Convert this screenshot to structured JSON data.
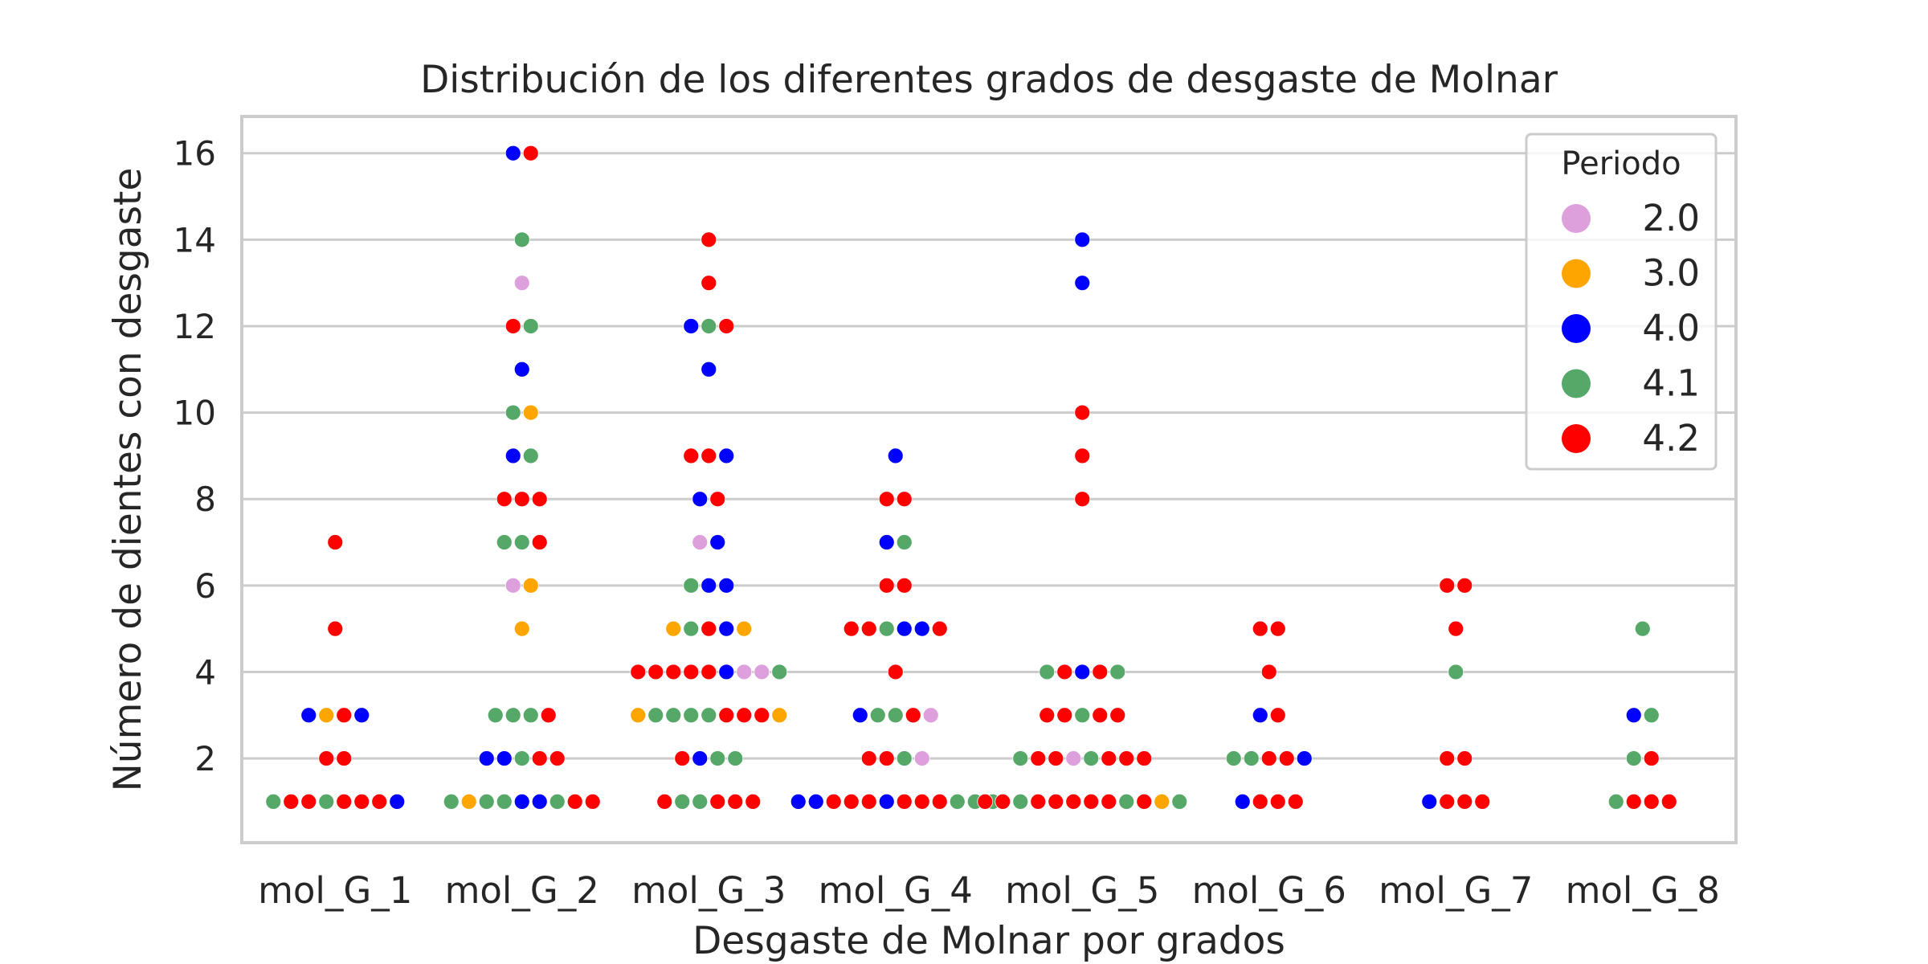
{
  "chart_data": {
    "type": "scatter",
    "subtype": "swarm",
    "title": "Distribución de los diferentes grados de desgaste de Molnar",
    "xlabel": "Desgaste de Molnar por grados",
    "ylabel": "Número de dientes con desgaste",
    "categories": [
      "mol_G_1",
      "mol_G_2",
      "mol_G_3",
      "mol_G_4",
      "mol_G_5",
      "mol_G_6",
      "mol_G_7",
      "mol_G_8"
    ],
    "ylim": [
      0.05,
      16.85
    ],
    "yticks": [
      2,
      4,
      6,
      8,
      10,
      12,
      14,
      16
    ],
    "grid": true,
    "legend": {
      "title": "Periodo",
      "placement": "top-right",
      "entries": [
        {
          "label": "2.0",
          "color": "#dda0dd"
        },
        {
          "label": "3.0",
          "color": "#ffa500"
        },
        {
          "label": "4.0",
          "color": "#0000ff"
        },
        {
          "label": "4.1",
          "color": "#55a868"
        },
        {
          "label": "4.2",
          "color": "#ff0000"
        }
      ]
    },
    "groups": [
      {
        "category": "mol_G_1",
        "points": [
          {
            "y": 1,
            "periodo": [
              "4.1",
              "4.2",
              "4.2",
              "4.1",
              "4.2",
              "4.2",
              "4.2",
              "4.0"
            ]
          },
          {
            "y": 2,
            "periodo": [
              "4.2",
              "4.2"
            ]
          },
          {
            "y": 3,
            "periodo": [
              "4.0",
              "3.0",
              "4.2",
              "4.0"
            ]
          },
          {
            "y": 5,
            "periodo": [
              "4.2"
            ]
          },
          {
            "y": 7,
            "periodo": [
              "4.2"
            ]
          }
        ]
      },
      {
        "category": "mol_G_2",
        "points": [
          {
            "y": 1,
            "periodo": [
              "4.1",
              "3.0",
              "4.1",
              "4.1",
              "4.0",
              "4.0",
              "4.1",
              "4.2",
              "4.2"
            ]
          },
          {
            "y": 2,
            "periodo": [
              "4.0",
              "4.0",
              "4.1",
              "4.2",
              "4.2"
            ]
          },
          {
            "y": 3,
            "periodo": [
              "4.1",
              "4.1",
              "4.1",
              "4.2"
            ]
          },
          {
            "y": 5,
            "periodo": [
              "3.0"
            ]
          },
          {
            "y": 6,
            "periodo": [
              "2.0",
              "3.0"
            ]
          },
          {
            "y": 7,
            "periodo": [
              "4.1",
              "4.1",
              "4.2"
            ]
          },
          {
            "y": 8,
            "periodo": [
              "4.2",
              "4.2",
              "4.2"
            ]
          },
          {
            "y": 9,
            "periodo": [
              "4.0",
              "4.1"
            ]
          },
          {
            "y": 10,
            "periodo": [
              "4.1",
              "3.0"
            ]
          },
          {
            "y": 11,
            "periodo": [
              "4.0"
            ]
          },
          {
            "y": 12,
            "periodo": [
              "4.2",
              "4.1"
            ]
          },
          {
            "y": 13,
            "periodo": [
              "2.0"
            ]
          },
          {
            "y": 14,
            "periodo": [
              "4.1"
            ]
          },
          {
            "y": 16,
            "periodo": [
              "4.0",
              "4.2"
            ]
          }
        ]
      },
      {
        "category": "mol_G_3",
        "points": [
          {
            "y": 1,
            "periodo": [
              "4.2",
              "4.1",
              "4.1",
              "4.2",
              "4.2",
              "4.2"
            ]
          },
          {
            "y": 2,
            "periodo": [
              "4.2",
              "4.0",
              "4.1",
              "4.1"
            ]
          },
          {
            "y": 3,
            "periodo": [
              "3.0",
              "4.1",
              "4.1",
              "4.1",
              "4.1",
              "4.2",
              "4.2",
              "4.2",
              "3.0"
            ]
          },
          {
            "y": 4,
            "periodo": [
              "4.2",
              "4.2",
              "4.2",
              "4.2",
              "4.2",
              "4.0",
              "2.0",
              "2.0",
              "4.1"
            ]
          },
          {
            "y": 5,
            "periodo": [
              "3.0",
              "4.1",
              "4.2",
              "4.0",
              "3.0"
            ]
          },
          {
            "y": 6,
            "periodo": [
              "4.1",
              "4.0",
              "4.0"
            ]
          },
          {
            "y": 7,
            "periodo": [
              "2.0",
              "4.0"
            ]
          },
          {
            "y": 8,
            "periodo": [
              "4.0",
              "4.2"
            ]
          },
          {
            "y": 9,
            "periodo": [
              "4.2",
              "4.2",
              "4.0"
            ]
          },
          {
            "y": 11,
            "periodo": [
              "4.0"
            ]
          },
          {
            "y": 12,
            "periodo": [
              "4.0",
              "4.1",
              "4.2"
            ]
          },
          {
            "y": 13,
            "periodo": [
              "4.2"
            ]
          },
          {
            "y": 14,
            "periodo": [
              "4.2"
            ]
          }
        ]
      },
      {
        "category": "mol_G_4",
        "points": [
          {
            "y": 1,
            "periodo": [
              "4.0",
              "4.0",
              "4.2",
              "4.2",
              "4.2",
              "4.0",
              "4.2",
              "4.2",
              "4.2",
              "4.1",
              "4.1",
              "4.1"
            ]
          },
          {
            "y": 2,
            "periodo": [
              "4.2",
              "4.2",
              "4.1",
              "2.0"
            ]
          },
          {
            "y": 3,
            "periodo": [
              "4.0",
              "4.1",
              "4.1",
              "4.2",
              "2.0"
            ]
          },
          {
            "y": 4,
            "periodo": [
              "4.2"
            ]
          },
          {
            "y": 5,
            "periodo": [
              "4.2",
              "4.2",
              "4.1",
              "4.0",
              "4.0",
              "4.2"
            ]
          },
          {
            "y": 6,
            "periodo": [
              "4.2",
              "4.2"
            ]
          },
          {
            "y": 7,
            "periodo": [
              "4.0",
              "4.1"
            ]
          },
          {
            "y": 8,
            "periodo": [
              "4.2",
              "4.2"
            ]
          },
          {
            "y": 9,
            "periodo": [
              "4.0"
            ]
          }
        ]
      },
      {
        "category": "mol_G_5",
        "points": [
          {
            "y": 1,
            "periodo": [
              "4.2",
              "4.2",
              "4.1",
              "4.2",
              "4.2",
              "4.2",
              "4.2",
              "4.2",
              "4.1",
              "4.2",
              "3.0",
              "4.1"
            ]
          },
          {
            "y": 2,
            "periodo": [
              "4.1",
              "4.2",
              "4.2",
              "2.0",
              "4.1",
              "4.2",
              "4.2",
              "4.2"
            ]
          },
          {
            "y": 3,
            "periodo": [
              "4.2",
              "4.2",
              "4.1",
              "4.2",
              "4.2"
            ]
          },
          {
            "y": 4,
            "periodo": [
              "4.1",
              "4.2",
              "4.0",
              "4.2",
              "4.1"
            ]
          },
          {
            "y": 8,
            "periodo": [
              "4.2"
            ]
          },
          {
            "y": 9,
            "periodo": [
              "4.2"
            ]
          },
          {
            "y": 10,
            "periodo": [
              "4.2"
            ]
          },
          {
            "y": 13,
            "periodo": [
              "4.0"
            ]
          },
          {
            "y": 14,
            "periodo": [
              "4.0"
            ]
          }
        ]
      },
      {
        "category": "mol_G_6",
        "points": [
          {
            "y": 1,
            "periodo": [
              "4.0",
              "4.2",
              "4.2",
              "4.2"
            ]
          },
          {
            "y": 2,
            "periodo": [
              "4.1",
              "4.1",
              "4.2",
              "4.2",
              "4.0"
            ]
          },
          {
            "y": 3,
            "periodo": [
              "4.0",
              "4.2"
            ]
          },
          {
            "y": 4,
            "periodo": [
              "4.2"
            ]
          },
          {
            "y": 5,
            "periodo": [
              "4.2",
              "4.2"
            ]
          }
        ]
      },
      {
        "category": "mol_G_7",
        "points": [
          {
            "y": 1,
            "periodo": [
              "4.0",
              "4.2",
              "4.2",
              "4.2"
            ]
          },
          {
            "y": 2,
            "periodo": [
              "4.2",
              "4.2"
            ]
          },
          {
            "y": 4,
            "periodo": [
              "4.1"
            ]
          },
          {
            "y": 5,
            "periodo": [
              "4.2"
            ]
          },
          {
            "y": 6,
            "periodo": [
              "4.2",
              "4.2"
            ]
          }
        ]
      },
      {
        "category": "mol_G_8",
        "points": [
          {
            "y": 1,
            "periodo": [
              "4.1",
              "4.2",
              "4.2",
              "4.2"
            ]
          },
          {
            "y": 2,
            "periodo": [
              "4.1",
              "4.2"
            ]
          },
          {
            "y": 3,
            "periodo": [
              "4.0",
              "4.1"
            ]
          },
          {
            "y": 5,
            "periodo": [
              "4.1"
            ]
          }
        ]
      }
    ]
  }
}
